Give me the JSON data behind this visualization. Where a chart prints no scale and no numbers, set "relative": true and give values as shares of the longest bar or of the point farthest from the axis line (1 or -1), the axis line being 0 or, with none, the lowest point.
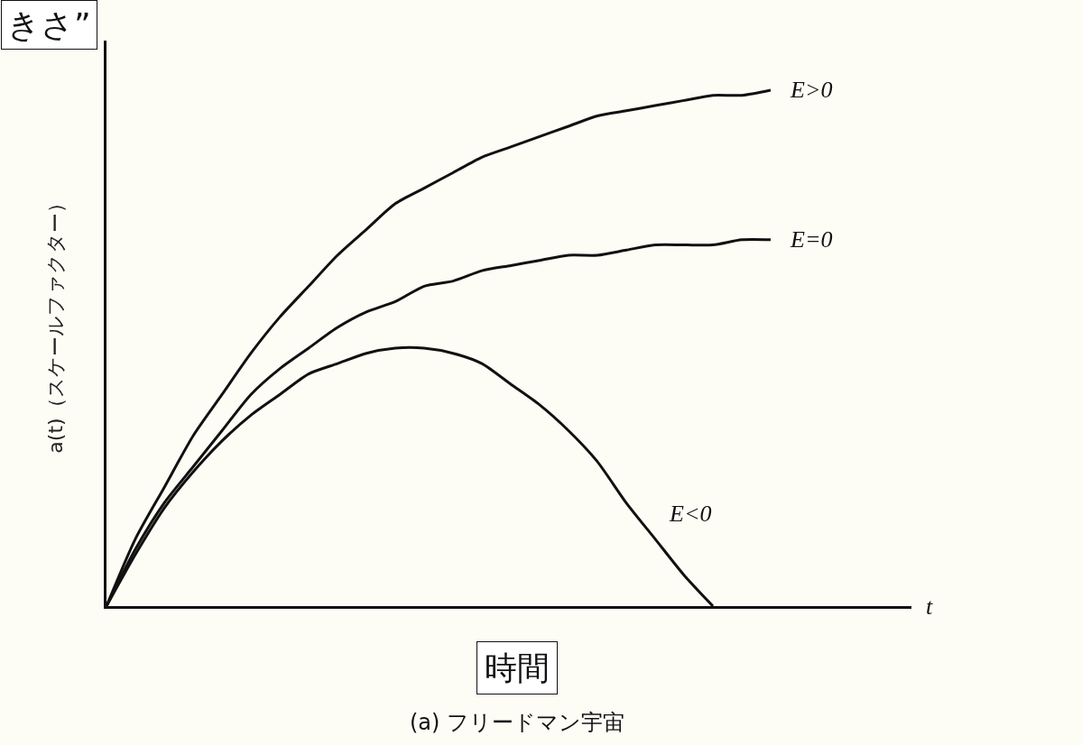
{
  "chart_data": {
    "type": "line",
    "relative": true,
    "title": "きさ”",
    "ylabel": "a(t)（スケールファクター）",
    "annotations": [
      "t",
      "時間",
      "(a) フリードマン宇宙"
    ],
    "categories": [
      null,
      null,
      null,
      null,
      null,
      null,
      null,
      null,
      null,
      null,
      null,
      null,
      null,
      null,
      null,
      null,
      null,
      null,
      null,
      null,
      null,
      null,
      null,
      null
    ],
    "series": [
      {
        "name": "E>0",
        "color": "#111111",
        "values": [
          0,
          0.13,
          0.23,
          0.33,
          0.41,
          0.49,
          0.56,
          0.62,
          0.68,
          0.73,
          0.78,
          0.81,
          0.84,
          0.87,
          0.89,
          0.91,
          0.93,
          0.95,
          0.96,
          0.97,
          0.98,
          0.99,
          0.99,
          1
        ]
      },
      {
        "name": "E=0",
        "color": "#111111",
        "values": [
          0,
          0.11,
          0.2,
          0.27,
          0.34,
          0.41,
          0.46,
          0.5,
          0.54,
          0.57,
          0.59,
          0.62,
          0.63,
          0.65,
          0.66,
          0.67,
          0.68,
          0.68,
          0.69,
          0.7,
          0.7,
          0.7,
          0.71,
          0.71
        ]
      },
      {
        "name": "E<0",
        "color": "#111111",
        "values": [
          0,
          0.1,
          0.19,
          0.26,
          0.32,
          0.37,
          0.41,
          0.45,
          0.47,
          0.49,
          0.5,
          0.5,
          0.49,
          0.47,
          0.43,
          0.39,
          0.34,
          0.28,
          0.2,
          0.13,
          0.06,
          0,
          null,
          null
        ]
      }
    ],
    "legend": false
  }
}
